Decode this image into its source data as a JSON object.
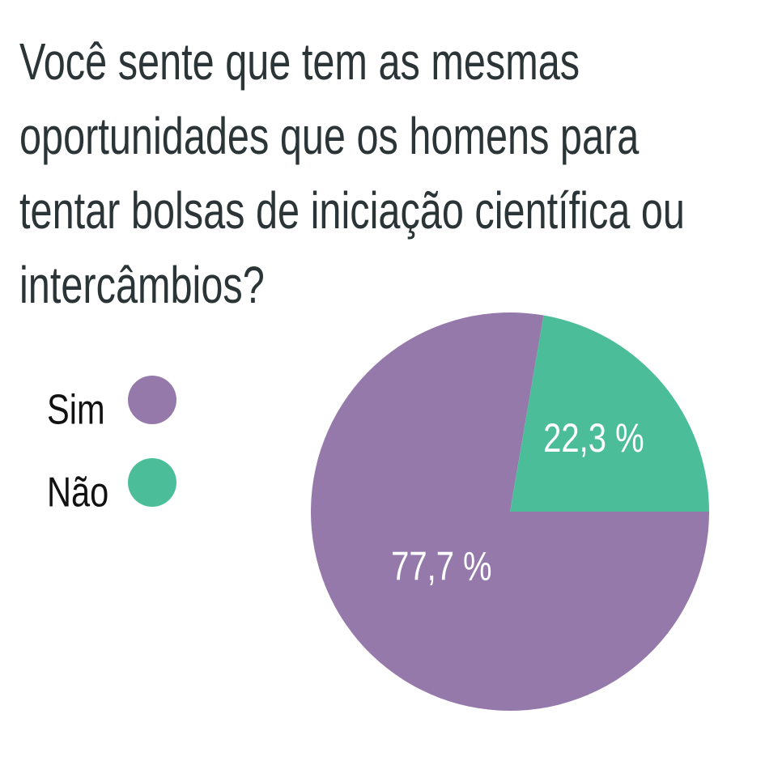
{
  "chart_data": {
    "type": "pie",
    "title": "Você sente que tem as mesmas oportunidades que os homens para tentar bolsas de iniciação científica ou intercâmbios?",
    "categories": [
      "Sim",
      "Não"
    ],
    "values": [
      77.7,
      22.3
    ],
    "value_labels": [
      "77,7 %",
      "22,3 %"
    ],
    "colors": [
      "#9579ab",
      "#4bbd98"
    ]
  }
}
